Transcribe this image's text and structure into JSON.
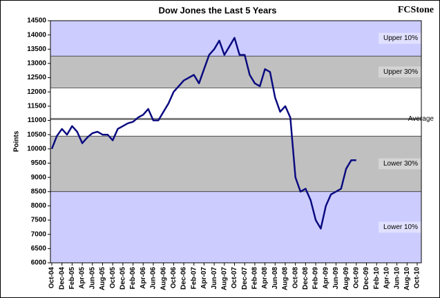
{
  "logo": "FCStone",
  "chart_data": {
    "type": "line",
    "title": "Dow Jones the Last 5 Years",
    "y_label": "Points",
    "categories": [
      "Oct-04",
      null,
      "Dec-04",
      null,
      "Feb-05",
      null,
      "Apr-05",
      null,
      "Jun-05",
      null,
      "Aug-05",
      null,
      "Oct-05",
      null,
      "Dec-05",
      null,
      "Feb-06",
      null,
      "Apr-06",
      null,
      "Jun-06",
      null,
      "Aug-06",
      null,
      "Oct-06",
      null,
      "Dec-06",
      null,
      "Feb-07",
      null,
      "Apr-07",
      null,
      "Jun-07",
      null,
      "Aug-07",
      null,
      "Oct-07",
      null,
      "Dec-07",
      null,
      "Feb-08",
      null,
      "Apr-08",
      null,
      "Jun-08",
      null,
      "Aug-08",
      null,
      "Oct-08",
      null,
      "Dec-08",
      null,
      "Feb-09",
      null,
      "Apr-09",
      null,
      "Jun-09",
      null,
      "Aug-09",
      null,
      "Oct-09",
      null,
      "Dec-09",
      null,
      "Feb-10",
      null,
      "Apr-10",
      null,
      "Jun-10",
      null,
      "Aug-10",
      null,
      "Oct-10"
    ],
    "series": [
      {
        "name": "Dow Jones",
        "color": "#0a0a80",
        "values": [
          10000,
          10450,
          10700,
          10500,
          10800,
          10600,
          10200,
          10400,
          10550,
          10600,
          10500,
          10500,
          10300,
          10700,
          10800,
          10900,
          10950,
          11100,
          11200,
          11400,
          11000,
          11000,
          11300,
          11600,
          12000,
          12200,
          12400,
          12500,
          12600,
          12300,
          12800,
          13300,
          13500,
          13800,
          13300,
          13600,
          13900,
          13300,
          13300,
          12600,
          12300,
          12200,
          12800,
          12700,
          11800,
          11300,
          11500,
          11100,
          9000,
          8500,
          8600,
          8200,
          7500,
          7200,
          8000,
          8400,
          8500,
          8600,
          9300,
          9600,
          9600,
          null,
          null,
          null,
          null,
          null,
          null,
          null,
          null,
          null,
          null,
          null,
          null
        ]
      }
    ],
    "ylim": [
      6000,
      14500
    ],
    "yticks": [
      6000,
      6500,
      7000,
      7500,
      8000,
      8500,
      9000,
      9500,
      10000,
      10500,
      11000,
      11500,
      12000,
      12500,
      13000,
      13500,
      14000,
      14500
    ],
    "bands": [
      {
        "label": "Lower 10%",
        "from": 6000,
        "to": 8500,
        "color": "#ccccff"
      },
      {
        "label": "Lower 30%",
        "from": 8500,
        "to": 10450,
        "color": "#c0c0c0"
      },
      {
        "label": "Upper 30%",
        "from": 12140,
        "to": 13260,
        "color": "#c0c0c0"
      },
      {
        "label": "Upper 10%",
        "from": 13260,
        "to": 14500,
        "color": "#ccccff"
      }
    ],
    "average": {
      "label": "Average",
      "value": 11050,
      "color": "#808080"
    }
  }
}
